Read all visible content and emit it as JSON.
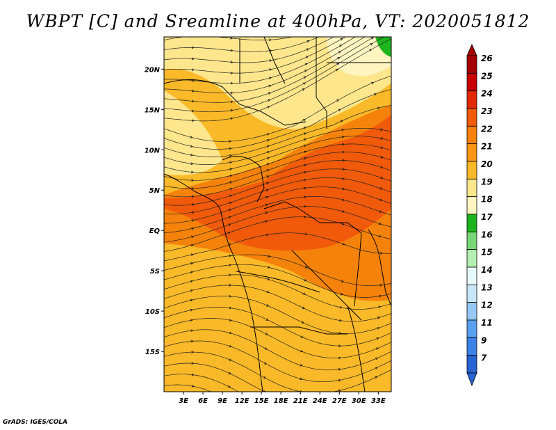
{
  "title": "WBPT [C] and Sreamline at 400hPa, VT: 2020051812",
  "credit": "GrADS: IGES/COLA",
  "map": {
    "lon_range": [
      0,
      35
    ],
    "lat_range": [
      -20,
      24
    ],
    "lat_ticks": [
      {
        "value": 20,
        "label": "20N"
      },
      {
        "value": 15,
        "label": "15N"
      },
      {
        "value": 10,
        "label": "10N"
      },
      {
        "value": 5,
        "label": "5N"
      },
      {
        "value": 0,
        "label": "EQ"
      },
      {
        "value": -5,
        "label": "5S"
      },
      {
        "value": -10,
        "label": "10S"
      },
      {
        "value": -15,
        "label": "15S"
      }
    ],
    "lon_ticks": [
      {
        "value": 3,
        "label": "3E"
      },
      {
        "value": 6,
        "label": "6E"
      },
      {
        "value": 9,
        "label": "9E"
      },
      {
        "value": 12,
        "label": "12E"
      },
      {
        "value": 15,
        "label": "15E"
      },
      {
        "value": 18,
        "label": "18E"
      },
      {
        "value": 21,
        "label": "21E"
      },
      {
        "value": 24,
        "label": "24E"
      },
      {
        "value": 27,
        "label": "27E"
      },
      {
        "value": 30,
        "label": "30E"
      },
      {
        "value": 33,
        "label": "33E"
      }
    ]
  },
  "colorbar": {
    "levels": [
      "26",
      "25",
      "24",
      "23",
      "22",
      "21",
      "20",
      "19",
      "18",
      "17",
      "16",
      "15",
      "14",
      "13",
      "12",
      "11",
      "9",
      "7"
    ],
    "colors": [
      "#a50000",
      "#c80000",
      "#e12800",
      "#f05a0a",
      "#f5820a",
      "#fa9614",
      "#fab928",
      "#fde68c",
      "#fff5c0",
      "#1eb41e",
      "#78d878",
      "#b4f0b4",
      "#e6fafa",
      "#c8e6fa",
      "#96c8f5",
      "#5aa0f0",
      "#3c82e6",
      "#2864d2"
    ],
    "top_arrow_color": "#a50000",
    "bottom_arrow_color": "#2864d2"
  }
}
